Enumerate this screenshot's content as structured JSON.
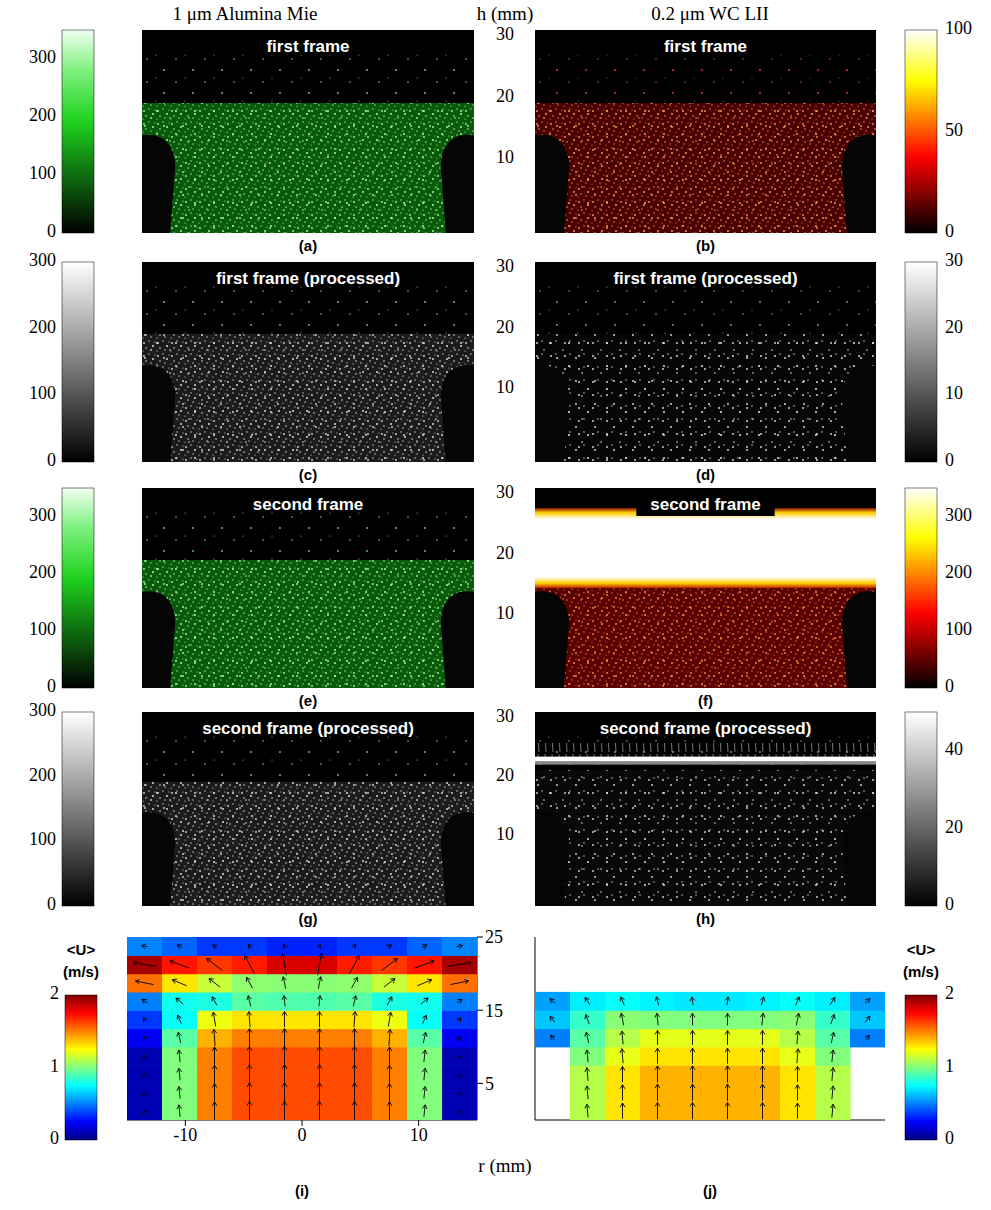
{
  "headers": {
    "left": "1 μm Alumina Mie",
    "middle": "h (mm)",
    "right": "0.2 μm WC LII"
  },
  "image_axis": {
    "ylim": [
      -2,
      31
    ],
    "yticks": [
      10,
      20,
      30
    ]
  },
  "images": [
    {
      "panel": "(a)",
      "title": "first frame",
      "color": "green",
      "colorbar": {
        "range": [
          0,
          350
        ],
        "ticks": [
          0,
          100,
          200,
          300
        ]
      }
    },
    {
      "panel": "(b)",
      "title": "first frame",
      "color": "hot",
      "colorbar": {
        "range": [
          0,
          100
        ],
        "ticks": [
          0,
          50,
          100
        ]
      }
    },
    {
      "panel": "(c)",
      "title": "first frame (processed)",
      "color": "gray",
      "colorbar": {
        "range": [
          0,
          300
        ],
        "ticks": [
          0,
          100,
          200,
          300
        ]
      }
    },
    {
      "panel": "(d)",
      "title": "first frame (processed)",
      "color": "gray",
      "colorbar": {
        "range": [
          0,
          30
        ],
        "ticks": [
          0,
          10,
          20,
          30
        ]
      }
    },
    {
      "panel": "(e)",
      "title": "second frame",
      "color": "green",
      "colorbar": {
        "range": [
          0,
          350
        ],
        "ticks": [
          0,
          100,
          200,
          300
        ]
      }
    },
    {
      "panel": "(f)",
      "title": "second frame",
      "color": "hot",
      "colorbar": {
        "range": [
          0,
          350
        ],
        "ticks": [
          0,
          100,
          200,
          300
        ]
      }
    },
    {
      "panel": "(g)",
      "title": "second frame (processed)",
      "color": "gray",
      "colorbar": {
        "range": [
          0,
          300
        ],
        "ticks": [
          0,
          100,
          200,
          300
        ]
      }
    },
    {
      "panel": "(h)",
      "title": "second frame (processed)",
      "color": "gray",
      "colorbar": {
        "range": [
          0,
          50
        ],
        "ticks": [
          0,
          20,
          40
        ]
      }
    }
  ],
  "xlabel": "r (mm)",
  "chart_data": [
    {
      "type": "heatmap",
      "label": "(i)",
      "x": [
        -13.5,
        -10.5,
        -7.5,
        -4.5,
        -1.5,
        1.5,
        4.5,
        7.5,
        10.5,
        13.5
      ],
      "y": [
        1.25,
        3.75,
        6.25,
        8.75,
        11.25,
        13.75,
        16.25,
        18.75,
        21.25,
        23.75
      ],
      "u_r": [
        [
          0,
          -0.1,
          0,
          0,
          0,
          0,
          0,
          0,
          0.1,
          0
        ],
        [
          0,
          -0.1,
          0,
          0,
          0,
          0,
          0,
          0,
          0.1,
          0
        ],
        [
          0,
          -0.1,
          0,
          0,
          0,
          0,
          0,
          0,
          0.1,
          0
        ],
        [
          0,
          -0.1,
          0,
          0,
          0,
          0,
          0,
          0,
          0.1,
          0
        ],
        [
          -0.1,
          -0.2,
          -0.1,
          0,
          0,
          0,
          0,
          0.1,
          0.2,
          0.1
        ],
        [
          -0.2,
          -0.3,
          -0.2,
          -0.1,
          0,
          0,
          0.1,
          0.2,
          0.3,
          0.2
        ],
        [
          -0.4,
          -0.6,
          -0.4,
          -0.2,
          -0.1,
          0.1,
          0.2,
          0.4,
          0.6,
          0.4
        ],
        [
          -1.5,
          -1.2,
          -0.9,
          -0.5,
          -0.2,
          0.2,
          0.5,
          0.9,
          1.2,
          1.5
        ],
        [
          -1.9,
          -1.6,
          -1.3,
          -0.8,
          -0.3,
          0.3,
          0.8,
          1.3,
          1.6,
          1.9
        ],
        [
          -0.5,
          -0.4,
          -0.3,
          -0.2,
          -0.1,
          0.1,
          0.2,
          0.3,
          0.4,
          0.5
        ]
      ],
      "u_h": [
        [
          0.1,
          1.0,
          1.5,
          1.6,
          1.6,
          1.6,
          1.6,
          1.5,
          1.0,
          0.1
        ],
        [
          0.1,
          1.0,
          1.5,
          1.6,
          1.6,
          1.6,
          1.6,
          1.5,
          1.0,
          0.1
        ],
        [
          0.1,
          1.0,
          1.5,
          1.6,
          1.6,
          1.6,
          1.6,
          1.5,
          1.0,
          0.1
        ],
        [
          0.1,
          1.0,
          1.5,
          1.6,
          1.6,
          1.6,
          1.6,
          1.5,
          1.0,
          0.1
        ],
        [
          0.2,
          0.9,
          1.4,
          1.5,
          1.5,
          1.5,
          1.5,
          1.4,
          0.9,
          0.2
        ],
        [
          0.3,
          0.7,
          1.2,
          1.3,
          1.3,
          1.3,
          1.3,
          1.2,
          0.7,
          0.3
        ],
        [
          0.3,
          0.5,
          0.7,
          0.9,
          0.9,
          0.9,
          0.9,
          0.7,
          0.5,
          0.3
        ],
        [
          0.3,
          0.5,
          0.7,
          0.9,
          1.0,
          1.0,
          0.9,
          0.7,
          0.5,
          0.3
        ],
        [
          0.3,
          0.6,
          1.0,
          1.5,
          1.8,
          1.8,
          1.5,
          1.0,
          0.6,
          0.3
        ],
        [
          0.1,
          0.2,
          0.2,
          0.3,
          0.3,
          0.3,
          0.3,
          0.2,
          0.2,
          0.1
        ]
      ],
      "xlim": [
        -15,
        15
      ],
      "xticks": [
        -10,
        0,
        10
      ],
      "ylim": [
        0,
        25
      ],
      "yticks": [
        5,
        15,
        25
      ],
      "colorbar": {
        "label": "<U> (m/s)",
        "range": [
          0,
          2
        ],
        "ticks": [
          0,
          1,
          2
        ]
      },
      "tick_labels": true
    },
    {
      "type": "heatmap",
      "label": "(j)",
      "x": [
        -13.5,
        -10.5,
        -7.5,
        -4.5,
        -1.5,
        1.5,
        4.5,
        7.5,
        10.5,
        13.5
      ],
      "y": [
        1.25,
        3.75,
        6.25,
        8.75,
        11.25,
        13.75,
        16.25
      ],
      "u_r": [
        [
          null,
          -0.1,
          0,
          0,
          0,
          0,
          0,
          0,
          0.1,
          null
        ],
        [
          null,
          -0.1,
          0,
          0,
          0,
          0,
          0,
          0,
          0.1,
          null
        ],
        [
          null,
          -0.1,
          0,
          0,
          0,
          0,
          0,
          0,
          0.1,
          null
        ],
        [
          null,
          -0.1,
          -0.1,
          0,
          0,
          0,
          0,
          0.1,
          0.1,
          null
        ],
        [
          -0.3,
          -0.2,
          -0.1,
          0,
          0,
          0,
          0,
          0.1,
          0.2,
          0.3
        ],
        [
          -0.4,
          -0.3,
          -0.2,
          -0.1,
          0,
          0,
          0.1,
          0.2,
          0.3,
          0.4
        ],
        [
          -0.4,
          -0.4,
          -0.3,
          -0.2,
          -0.1,
          0.1,
          0.2,
          0.3,
          0.4,
          0.4
        ]
      ],
      "u_h": [
        [
          null,
          1.1,
          1.3,
          1.4,
          1.4,
          1.4,
          1.4,
          1.3,
          1.1,
          null
        ],
        [
          null,
          1.1,
          1.3,
          1.4,
          1.4,
          1.4,
          1.4,
          1.3,
          1.1,
          null
        ],
        [
          null,
          1.1,
          1.3,
          1.4,
          1.4,
          1.4,
          1.4,
          1.3,
          1.1,
          null
        ],
        [
          null,
          1.0,
          1.2,
          1.3,
          1.3,
          1.3,
          1.3,
          1.2,
          1.0,
          null
        ],
        [
          0.4,
          0.9,
          1.1,
          1.2,
          1.2,
          1.2,
          1.2,
          1.1,
          0.9,
          0.4
        ],
        [
          0.5,
          0.8,
          1.0,
          1.0,
          1.0,
          1.0,
          1.0,
          1.0,
          0.8,
          0.5
        ],
        [
          0.4,
          0.6,
          0.7,
          0.7,
          0.7,
          0.7,
          0.7,
          0.7,
          0.6,
          0.4
        ]
      ],
      "xlim": [
        -15,
        15
      ],
      "xticks": [
        -10,
        0,
        10
      ],
      "ylim": [
        0,
        25
      ],
      "yticks": [
        5,
        15,
        25
      ],
      "colorbar": {
        "label": "<U> (m/s)",
        "range": [
          0,
          2
        ],
        "ticks": [
          0,
          1,
          2
        ]
      },
      "tick_labels": false
    }
  ]
}
